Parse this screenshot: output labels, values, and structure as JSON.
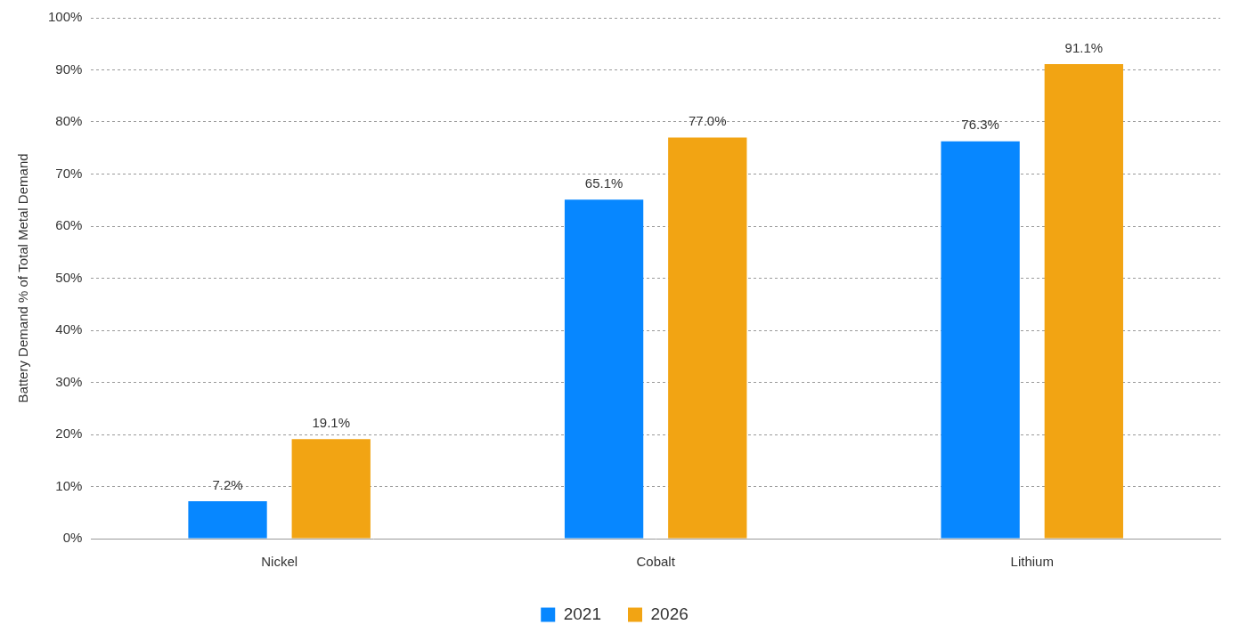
{
  "chart_data": {
    "type": "bar",
    "ylabel": "Battery Demand % of Total Metal Demand",
    "categories": [
      "Nickel",
      "Cobalt",
      "Lithium"
    ],
    "series": [
      {
        "name": "2021",
        "color": "#0787ff",
        "values": [
          7.2,
          65.1,
          76.3
        ],
        "value_labels": [
          "7.2%",
          "65.1%",
          "76.3%"
        ]
      },
      {
        "name": "2026",
        "color": "#f2a413",
        "values": [
          19.1,
          77.0,
          91.1
        ],
        "value_labels": [
          "19.1%",
          "77.0%",
          "91.1%"
        ]
      }
    ],
    "ylim": [
      0,
      100
    ],
    "yticks": [
      {
        "value": 0,
        "label": "0%"
      },
      {
        "value": 10,
        "label": "10%"
      },
      {
        "value": 20,
        "label": "20%"
      },
      {
        "value": 30,
        "label": "30%"
      },
      {
        "value": 40,
        "label": "40%"
      },
      {
        "value": 50,
        "label": "50%"
      },
      {
        "value": 60,
        "label": "60%"
      },
      {
        "value": 70,
        "label": "70%"
      },
      {
        "value": 80,
        "label": "80%"
      },
      {
        "value": 90,
        "label": "90%"
      },
      {
        "value": 100,
        "label": "100%"
      }
    ],
    "grid": true,
    "legend": "bottom",
    "data_labels": true
  }
}
